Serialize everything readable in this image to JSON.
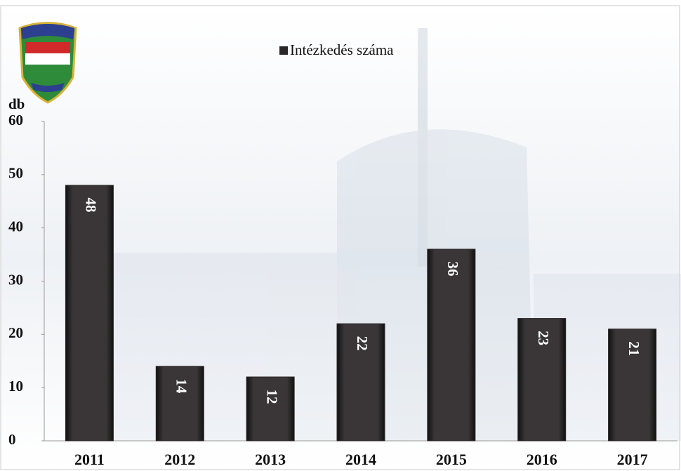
{
  "chart_data": {
    "type": "bar",
    "legend": "Intézkedés száma",
    "y_axis_label": "db",
    "categories": [
      "2011",
      "2012",
      "2013",
      "2014",
      "2015",
      "2016",
      "2017"
    ],
    "values": [
      48,
      14,
      12,
      22,
      36,
      23,
      21
    ],
    "color": "#2b2728",
    "ylim": [
      0,
      60
    ],
    "yticks": [
      0,
      10,
      20,
      30,
      40,
      50,
      60
    ],
    "grid": false,
    "legend_position": "top"
  }
}
